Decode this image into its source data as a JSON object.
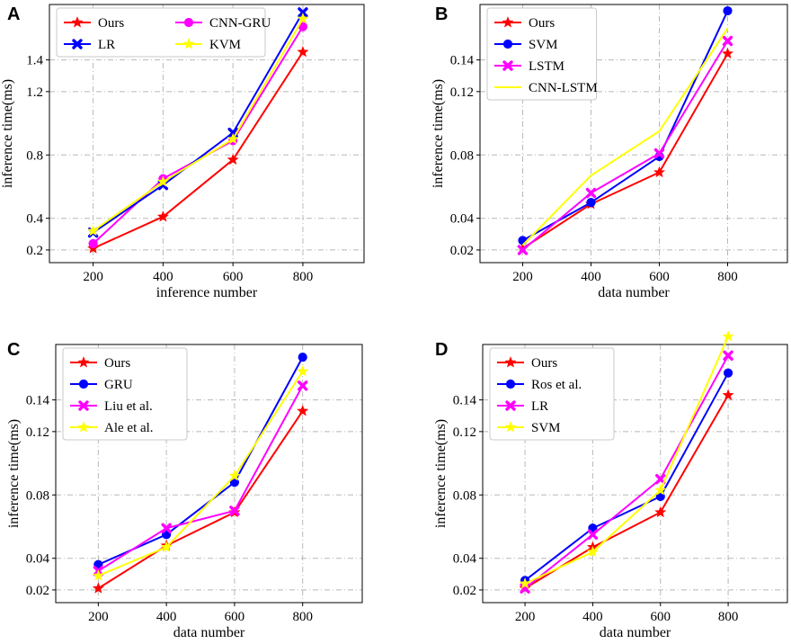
{
  "chart_data": [
    {
      "panel": "A",
      "type": "line",
      "xlabel": "inference number",
      "ylabel": "inference time(ms)",
      "x": [
        200,
        400,
        600,
        800
      ],
      "xticks": [
        200,
        400,
        600,
        800
      ],
      "xticklabels": [
        "200",
        "400",
        "600",
        "800"
      ],
      "xlim": [
        75,
        975
      ],
      "yticks": [
        0.2,
        0.4,
        0.8,
        1.2,
        1.4
      ],
      "yticklabels": [
        "0.2",
        "0.4",
        "0.8",
        "1.2",
        "1.4"
      ],
      "ylim": [
        0.12,
        1.75
      ],
      "grid": true,
      "legend_position": "top-left",
      "legend_columns": 2,
      "series": [
        {
          "name": "Ours",
          "color": "#ff0000",
          "marker": "star",
          "values": [
            0.21,
            0.41,
            0.77,
            1.45
          ]
        },
        {
          "name": "CNN-GRU",
          "color": "#ff00ff",
          "marker": "circle",
          "values": [
            0.24,
            0.65,
            0.89,
            1.61
          ]
        },
        {
          "name": "LR",
          "color": "#0000ff",
          "marker": "x",
          "values": [
            0.31,
            0.61,
            0.94,
            1.7
          ]
        },
        {
          "name": "KVM",
          "color": "#ffff00",
          "marker": "star",
          "values": [
            0.32,
            0.63,
            0.9,
            1.66
          ]
        }
      ]
    },
    {
      "panel": "B",
      "type": "line",
      "xlabel": "data number",
      "ylabel": "inference time(ms)",
      "x": [
        200,
        400,
        600,
        800
      ],
      "xticks": [
        200,
        400,
        600,
        800
      ],
      "xticklabels": [
        "200",
        "400",
        "600",
        "800"
      ],
      "xlim": [
        75,
        975
      ],
      "yticks": [
        0.02,
        0.04,
        0.08,
        0.12,
        0.14
      ],
      "yticklabels": [
        "0.02",
        "0.04",
        "0.08",
        "0.12",
        "0.14"
      ],
      "ylim": [
        0.012,
        0.175
      ],
      "grid": true,
      "legend_position": "top-left",
      "legend_columns": 1,
      "series": [
        {
          "name": "Ours",
          "color": "#ff0000",
          "marker": "star",
          "values": [
            0.021,
            0.049,
            0.069,
            0.144
          ]
        },
        {
          "name": "SVM",
          "color": "#0000ff",
          "marker": "circle",
          "values": [
            0.026,
            0.05,
            0.079,
            0.171
          ]
        },
        {
          "name": "LSTM",
          "color": "#ff00ff",
          "marker": "x",
          "values": [
            0.02,
            0.056,
            0.081,
            0.152
          ]
        },
        {
          "name": "CNN-LSTM",
          "color": "#ffff00",
          "marker": "none",
          "values": [
            0.023,
            0.067,
            0.095,
            0.16
          ]
        }
      ]
    },
    {
      "panel": "C",
      "type": "line",
      "xlabel": "data number",
      "ylabel": "inference time(ms)",
      "x": [
        200,
        400,
        600,
        800
      ],
      "xticks": [
        200,
        400,
        600,
        800
      ],
      "xticklabels": [
        "200",
        "400",
        "600",
        "800"
      ],
      "xlim": [
        75,
        975
      ],
      "yticks": [
        0.02,
        0.04,
        0.08,
        0.12,
        0.14
      ],
      "yticklabels": [
        "0.02",
        "0.04",
        "0.08",
        "0.12",
        "0.14"
      ],
      "ylim": [
        0.012,
        0.175
      ],
      "grid": true,
      "legend_position": "top-left",
      "legend_columns": 1,
      "series": [
        {
          "name": "Ours",
          "color": "#ff0000",
          "marker": "star",
          "values": [
            0.021,
            0.048,
            0.069,
            0.133
          ]
        },
        {
          "name": "GRU",
          "color": "#0000ff",
          "marker": "circle",
          "values": [
            0.036,
            0.055,
            0.088,
            0.167
          ]
        },
        {
          "name": "Liu et al.",
          "color": "#ff00ff",
          "marker": "x",
          "values": [
            0.032,
            0.059,
            0.07,
            0.149
          ]
        },
        {
          "name": "Ale et al.",
          "color": "#ffff00",
          "marker": "star",
          "values": [
            0.029,
            0.047,
            0.092,
            0.158
          ]
        }
      ]
    },
    {
      "panel": "D",
      "type": "line",
      "xlabel": "data number",
      "ylabel": "inference time(ms)",
      "x": [
        200,
        400,
        600,
        800
      ],
      "xticks": [
        200,
        400,
        600,
        800
      ],
      "xticklabels": [
        "200",
        "400",
        "600",
        "800"
      ],
      "xlim": [
        75,
        975
      ],
      "yticks": [
        0.02,
        0.04,
        0.08,
        0.12,
        0.14
      ],
      "yticklabels": [
        "0.02",
        "0.04",
        "0.08",
        "0.12",
        "0.14"
      ],
      "ylim": [
        0.012,
        0.175
      ],
      "grid": true,
      "legend_position": "top-left",
      "legend_columns": 1,
      "series": [
        {
          "name": "Ours",
          "color": "#ff0000",
          "marker": "star",
          "values": [
            0.021,
            0.047,
            0.069,
            0.143
          ]
        },
        {
          "name": "Ros et al.",
          "color": "#0000ff",
          "marker": "circle",
          "values": [
            0.026,
            0.059,
            0.079,
            0.157
          ]
        },
        {
          "name": "LR",
          "color": "#ff00ff",
          "marker": "x",
          "values": [
            0.021,
            0.055,
            0.09,
            0.168
          ]
        },
        {
          "name": "SVM",
          "color": "#ffff00",
          "marker": "star",
          "values": [
            0.024,
            0.044,
            0.083,
            0.18
          ]
        }
      ]
    }
  ]
}
